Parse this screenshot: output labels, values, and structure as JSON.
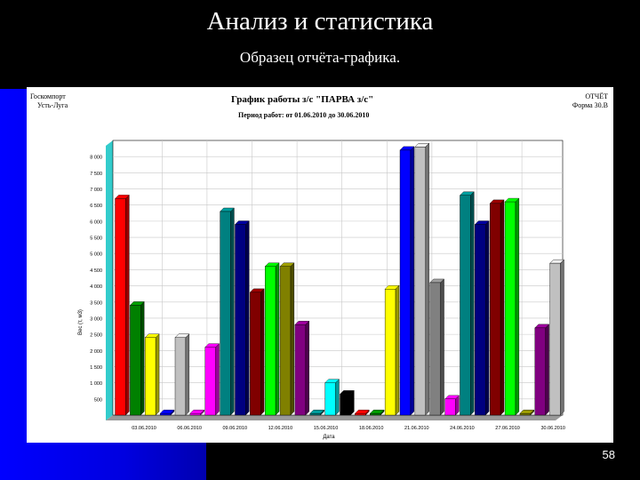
{
  "slide": {
    "title": "Анализ и статистика",
    "subtitle": "Образец отчёта-графика.",
    "page_number": "58"
  },
  "report": {
    "left_header_1": "Госкомпорт",
    "left_header_2": "Усть-Луга",
    "right_header_1": "ОТЧЁТ",
    "right_header_2": "Форма 30.В",
    "title": "График работы з/с \"ПАРВА з/с\"",
    "period": "Период работ: от 01.06.2010 до 30.06.2010"
  },
  "colors": {
    "background": "#000000",
    "accent_blue": "#0000ff",
    "plot_bg": "#ffffff",
    "grid": "#c8c8c8"
  },
  "chart_data": {
    "type": "bar",
    "title": "График работы з/с \"ПАРВА з/с\"",
    "xlabel": "Дата",
    "ylabel": "Вес (т, м3)",
    "ylim": [
      0,
      8500
    ],
    "yticks": [
      "500",
      "1 000",
      "1 500",
      "2 000",
      "2 500",
      "3 000",
      "3 500",
      "4 000",
      "4 500",
      "5 000",
      "5 500",
      "6 000",
      "6 500",
      "7 000",
      "7 500",
      "8 000"
    ],
    "ytick_values": [
      500,
      1000,
      1500,
      2000,
      2500,
      3000,
      3500,
      4000,
      4500,
      5000,
      5500,
      6000,
      6500,
      7000,
      7500,
      8000
    ],
    "xtick_labels": [
      "03.06.2010",
      "06.06.2010",
      "09.06.2010",
      "12.06.2010",
      "15.06.2010",
      "18.06.2010",
      "21.06.2010",
      "24.06.2010",
      "27.06.2010",
      "30.06.2010"
    ],
    "grid": true,
    "legend": "none",
    "bars": [
      {
        "value": 6700,
        "color": "#ff0000"
      },
      {
        "value": 3400,
        "color": "#008000"
      },
      {
        "value": 2400,
        "color": "#ffff00"
      },
      {
        "value": 50,
        "color": "#0000ff"
      },
      {
        "value": 2400,
        "color": "#c0c0c0"
      },
      {
        "value": 50,
        "color": "#ff00ff"
      },
      {
        "value": 2100,
        "color": "#ff00ff"
      },
      {
        "value": 6300,
        "color": "#008080"
      },
      {
        "value": 5900,
        "color": "#000080"
      },
      {
        "value": 3800,
        "color": "#800000"
      },
      {
        "value": 4600,
        "color": "#00ff00"
      },
      {
        "value": 4600,
        "color": "#808000"
      },
      {
        "value": 2800,
        "color": "#800080"
      },
      {
        "value": 50,
        "color": "#008080"
      },
      {
        "value": 1000,
        "color": "#00ffff"
      },
      {
        "value": 650,
        "color": "#000000"
      },
      {
        "value": 50,
        "color": "#ff0000"
      },
      {
        "value": 50,
        "color": "#008000"
      },
      {
        "value": 3900,
        "color": "#ffff00"
      },
      {
        "value": 8200,
        "color": "#0000ff"
      },
      {
        "value": 8300,
        "color": "#c0c0c0"
      },
      {
        "value": 4100,
        "color": "#808080"
      },
      {
        "value": 500,
        "color": "#ff00ff"
      },
      {
        "value": 6800,
        "color": "#008080"
      },
      {
        "value": 5900,
        "color": "#000080"
      },
      {
        "value": 6550,
        "color": "#800000"
      },
      {
        "value": 6600,
        "color": "#00ff00"
      },
      {
        "value": 50,
        "color": "#808000"
      },
      {
        "value": 2700,
        "color": "#800080"
      },
      {
        "value": 4700,
        "color": "#c0c0c0"
      }
    ]
  }
}
